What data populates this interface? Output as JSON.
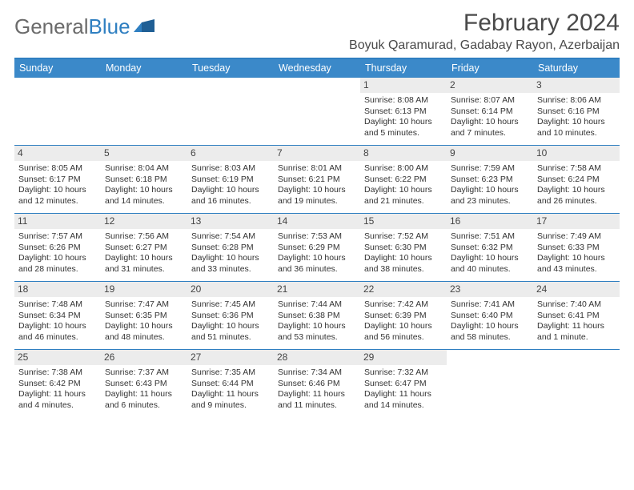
{
  "brand": {
    "part1": "General",
    "part2": "Blue"
  },
  "title": {
    "month": "February 2024",
    "location": "Boyuk Qaramurad, Gadabay Rayon, Azerbaijan"
  },
  "colors": {
    "accent": "#3b89c9",
    "rule": "#2f7fc1",
    "daynum_bg": "#ececec",
    "text": "#333333",
    "header_text": "#4a4a4a"
  },
  "dow": [
    "Sunday",
    "Monday",
    "Tuesday",
    "Wednesday",
    "Thursday",
    "Friday",
    "Saturday"
  ],
  "weeks": [
    [
      null,
      null,
      null,
      null,
      {
        "n": "1",
        "sunrise": "8:08 AM",
        "sunset": "6:13 PM",
        "daylight": "10 hours and 5 minutes."
      },
      {
        "n": "2",
        "sunrise": "8:07 AM",
        "sunset": "6:14 PM",
        "daylight": "10 hours and 7 minutes."
      },
      {
        "n": "3",
        "sunrise": "8:06 AM",
        "sunset": "6:16 PM",
        "daylight": "10 hours and 10 minutes."
      }
    ],
    [
      {
        "n": "4",
        "sunrise": "8:05 AM",
        "sunset": "6:17 PM",
        "daylight": "10 hours and 12 minutes."
      },
      {
        "n": "5",
        "sunrise": "8:04 AM",
        "sunset": "6:18 PM",
        "daylight": "10 hours and 14 minutes."
      },
      {
        "n": "6",
        "sunrise": "8:03 AM",
        "sunset": "6:19 PM",
        "daylight": "10 hours and 16 minutes."
      },
      {
        "n": "7",
        "sunrise": "8:01 AM",
        "sunset": "6:21 PM",
        "daylight": "10 hours and 19 minutes."
      },
      {
        "n": "8",
        "sunrise": "8:00 AM",
        "sunset": "6:22 PM",
        "daylight": "10 hours and 21 minutes."
      },
      {
        "n": "9",
        "sunrise": "7:59 AM",
        "sunset": "6:23 PM",
        "daylight": "10 hours and 23 minutes."
      },
      {
        "n": "10",
        "sunrise": "7:58 AM",
        "sunset": "6:24 PM",
        "daylight": "10 hours and 26 minutes."
      }
    ],
    [
      {
        "n": "11",
        "sunrise": "7:57 AM",
        "sunset": "6:26 PM",
        "daylight": "10 hours and 28 minutes."
      },
      {
        "n": "12",
        "sunrise": "7:56 AM",
        "sunset": "6:27 PM",
        "daylight": "10 hours and 31 minutes."
      },
      {
        "n": "13",
        "sunrise": "7:54 AM",
        "sunset": "6:28 PM",
        "daylight": "10 hours and 33 minutes."
      },
      {
        "n": "14",
        "sunrise": "7:53 AM",
        "sunset": "6:29 PM",
        "daylight": "10 hours and 36 minutes."
      },
      {
        "n": "15",
        "sunrise": "7:52 AM",
        "sunset": "6:30 PM",
        "daylight": "10 hours and 38 minutes."
      },
      {
        "n": "16",
        "sunrise": "7:51 AM",
        "sunset": "6:32 PM",
        "daylight": "10 hours and 40 minutes."
      },
      {
        "n": "17",
        "sunrise": "7:49 AM",
        "sunset": "6:33 PM",
        "daylight": "10 hours and 43 minutes."
      }
    ],
    [
      {
        "n": "18",
        "sunrise": "7:48 AM",
        "sunset": "6:34 PM",
        "daylight": "10 hours and 46 minutes."
      },
      {
        "n": "19",
        "sunrise": "7:47 AM",
        "sunset": "6:35 PM",
        "daylight": "10 hours and 48 minutes."
      },
      {
        "n": "20",
        "sunrise": "7:45 AM",
        "sunset": "6:36 PM",
        "daylight": "10 hours and 51 minutes."
      },
      {
        "n": "21",
        "sunrise": "7:44 AM",
        "sunset": "6:38 PM",
        "daylight": "10 hours and 53 minutes."
      },
      {
        "n": "22",
        "sunrise": "7:42 AM",
        "sunset": "6:39 PM",
        "daylight": "10 hours and 56 minutes."
      },
      {
        "n": "23",
        "sunrise": "7:41 AM",
        "sunset": "6:40 PM",
        "daylight": "10 hours and 58 minutes."
      },
      {
        "n": "24",
        "sunrise": "7:40 AM",
        "sunset": "6:41 PM",
        "daylight": "11 hours and 1 minute."
      }
    ],
    [
      {
        "n": "25",
        "sunrise": "7:38 AM",
        "sunset": "6:42 PM",
        "daylight": "11 hours and 4 minutes."
      },
      {
        "n": "26",
        "sunrise": "7:37 AM",
        "sunset": "6:43 PM",
        "daylight": "11 hours and 6 minutes."
      },
      {
        "n": "27",
        "sunrise": "7:35 AM",
        "sunset": "6:44 PM",
        "daylight": "11 hours and 9 minutes."
      },
      {
        "n": "28",
        "sunrise": "7:34 AM",
        "sunset": "6:46 PM",
        "daylight": "11 hours and 11 minutes."
      },
      {
        "n": "29",
        "sunrise": "7:32 AM",
        "sunset": "6:47 PM",
        "daylight": "11 hours and 14 minutes."
      },
      null,
      null
    ]
  ],
  "labels": {
    "sunrise": "Sunrise:",
    "sunset": "Sunset:",
    "daylight": "Daylight:"
  }
}
